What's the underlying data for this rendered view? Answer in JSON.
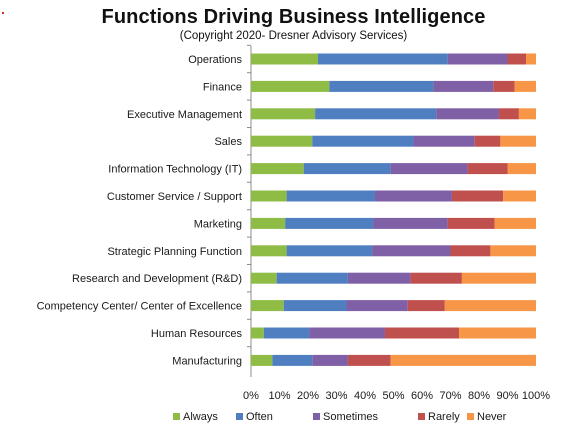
{
  "chart_data": {
    "type": "bar",
    "orientation": "horizontal",
    "stacked": "percent",
    "title": "Functions Driving Business Intelligence",
    "subtitle": "(Copyright 2020- Dresner Advisory Services)",
    "xlabel": "",
    "ylabel": "",
    "xlim": [
      0,
      100
    ],
    "x_ticks": [
      "0%",
      "10%",
      "20%",
      "30%",
      "40%",
      "50%",
      "60%",
      "70%",
      "80%",
      "90%",
      "100%"
    ],
    "grid": false,
    "legend_position": "bottom",
    "categories": [
      "Operations",
      "Finance",
      "Executive Management",
      "Sales",
      "Information Technology (IT)",
      "Customer Service / Support",
      "Marketing",
      "Strategic Planning Function",
      "Research and Development (R&D)",
      "Competency Center/ Center of Excellence",
      "Human Resources",
      "Manufacturing"
    ],
    "series": [
      {
        "name": "Always",
        "color": "#8fbc45",
        "values": [
          23.5,
          27.5,
          22.5,
          21.5,
          18.5,
          12.5,
          12.0,
          12.5,
          9.0,
          11.5,
          4.5,
          7.5
        ]
      },
      {
        "name": "Often",
        "color": "#4f7fc1",
        "values": [
          45.5,
          36.5,
          42.5,
          35.5,
          30.5,
          31.0,
          31.0,
          30.0,
          25.0,
          22.0,
          16.0,
          14.0
        ]
      },
      {
        "name": "Sometimes",
        "color": "#7f5fa5",
        "values": [
          21.0,
          21.0,
          22.0,
          21.5,
          27.0,
          27.0,
          26.0,
          27.5,
          22.0,
          21.5,
          26.5,
          12.5
        ]
      },
      {
        "name": "Rarely",
        "color": "#c0504d",
        "values": [
          6.5,
          7.5,
          7.0,
          9.0,
          14.0,
          18.0,
          16.5,
          14.0,
          18.0,
          13.0,
          26.0,
          15.0
        ]
      },
      {
        "name": "Never",
        "color": "#f79646",
        "values": [
          3.5,
          7.5,
          6.0,
          12.5,
          10.0,
          11.5,
          14.5,
          16.0,
          26.0,
          32.0,
          27.0,
          51.0
        ]
      }
    ]
  }
}
